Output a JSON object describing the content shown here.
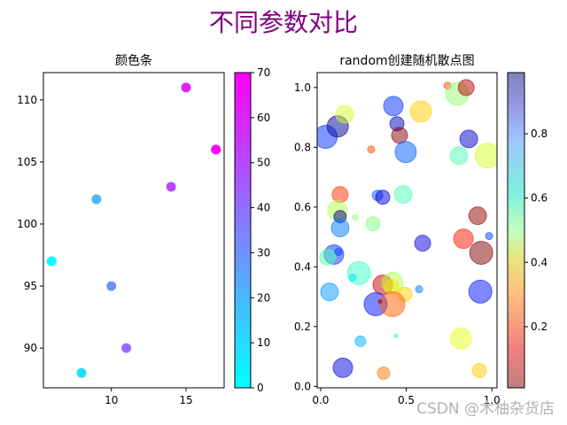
{
  "figure": {
    "suptitle": "不同参数对比",
    "suptitle_color": "#800080",
    "watermark": "CSDN @木柚杂货店"
  },
  "chart_data": [
    {
      "type": "scatter",
      "title": "颜色条",
      "xlabel": "",
      "ylabel": "",
      "xlim": [
        5.45,
        17.55
      ],
      "ylim": [
        86.8,
        112.2
      ],
      "xticks": [
        10,
        15
      ],
      "yticks": [
        90,
        95,
        100,
        105,
        110
      ],
      "grid": false,
      "colormap": "cool",
      "colorbar": {
        "range": [
          0,
          70
        ],
        "ticks": [
          0,
          10,
          20,
          30,
          40,
          50,
          60,
          70
        ]
      },
      "points": [
        {
          "x": 6,
          "y": 97,
          "c": 0
        },
        {
          "x": 8,
          "y": 88,
          "c": 10
        },
        {
          "x": 9,
          "y": 102,
          "c": 20
        },
        {
          "x": 10,
          "y": 95,
          "c": 30
        },
        {
          "x": 11,
          "y": 90,
          "c": 40
        },
        {
          "x": 14,
          "y": 103,
          "c": 50
        },
        {
          "x": 15,
          "y": 111,
          "c": 60
        },
        {
          "x": 17,
          "y": 106,
          "c": 70
        }
      ]
    },
    {
      "type": "scatter",
      "title": "random创建随机散点图",
      "xlabel": "",
      "ylabel": "",
      "xlim": [
        -0.02,
        1.03
      ],
      "ylim": [
        -0.005,
        1.05
      ],
      "xticks": [
        0.0,
        0.5,
        1.0
      ],
      "yticks": [
        0.0,
        0.2,
        0.4,
        0.6,
        0.8,
        1.0
      ],
      "grid": false,
      "colormap": "jet_r",
      "alpha": 0.5,
      "colorbar": {
        "range": [
          0.01,
          0.99
        ],
        "ticks": [
          0.2,
          0.4,
          0.6,
          0.8
        ]
      },
      "points": [
        {
          "x": 0.03,
          "y": 0.835,
          "r": 13,
          "c": 0.82
        },
        {
          "x": 0.1,
          "y": 0.87,
          "r": 12,
          "c": 0.97
        },
        {
          "x": 0.14,
          "y": 0.911,
          "r": 10,
          "c": 0.42
        },
        {
          "x": 0.425,
          "y": 0.938,
          "r": 11,
          "c": 0.82
        },
        {
          "x": 0.446,
          "y": 0.879,
          "r": 8,
          "c": 0.93
        },
        {
          "x": 0.461,
          "y": 0.84,
          "r": 9,
          "c": 0.02
        },
        {
          "x": 0.497,
          "y": 0.784,
          "r": 12,
          "c": 0.78
        },
        {
          "x": 0.295,
          "y": 0.793,
          "r": 4,
          "c": 0.2
        },
        {
          "x": 0.741,
          "y": 1.006,
          "r": 4,
          "c": 0.2
        },
        {
          "x": 0.798,
          "y": 0.979,
          "r": 13,
          "c": 0.48
        },
        {
          "x": 0.85,
          "y": 1.0,
          "r": 9,
          "c": 0.06
        },
        {
          "x": 0.585,
          "y": 0.92,
          "r": 12,
          "c": 0.33
        },
        {
          "x": 0.865,
          "y": 0.828,
          "r": 10,
          "c": 0.92
        },
        {
          "x": 0.808,
          "y": 0.772,
          "r": 10,
          "c": 0.55
        },
        {
          "x": 0.974,
          "y": 0.772,
          "r": 14,
          "c": 0.42
        },
        {
          "x": 0.114,
          "y": 0.642,
          "r": 9,
          "c": 0.18
        },
        {
          "x": 0.098,
          "y": 0.589,
          "r": 11,
          "c": 0.45
        },
        {
          "x": 0.114,
          "y": 0.568,
          "r": 7,
          "c": 1.0
        },
        {
          "x": 0.202,
          "y": 0.565,
          "r": 3,
          "c": 0.48
        },
        {
          "x": 0.114,
          "y": 0.53,
          "r": 10,
          "c": 0.75
        },
        {
          "x": 0.332,
          "y": 0.639,
          "r": 6,
          "c": 0.78
        },
        {
          "x": 0.363,
          "y": 0.633,
          "r": 8,
          "c": 0.9
        },
        {
          "x": 0.482,
          "y": 0.642,
          "r": 10,
          "c": 0.55
        },
        {
          "x": 0.306,
          "y": 0.544,
          "r": 8,
          "c": 0.5
        },
        {
          "x": 0.078,
          "y": 0.441,
          "r": 11,
          "c": 0.82
        },
        {
          "x": 0.041,
          "y": 0.432,
          "r": 9,
          "c": 0.55
        },
        {
          "x": 0.104,
          "y": 0.45,
          "r": 4,
          "c": 0.8
        },
        {
          "x": 0.917,
          "y": 0.571,
          "r": 10,
          "c": 0.03
        },
        {
          "x": 0.834,
          "y": 0.494,
          "r": 11,
          "c": 0.15
        },
        {
          "x": 0.984,
          "y": 0.503,
          "r": 4,
          "c": 0.8
        },
        {
          "x": 0.938,
          "y": 0.447,
          "r": 13,
          "c": 0.01
        },
        {
          "x": 0.596,
          "y": 0.479,
          "r": 9,
          "c": 0.9
        },
        {
          "x": 0.223,
          "y": 0.379,
          "r": 13,
          "c": 0.57
        },
        {
          "x": 0.187,
          "y": 0.364,
          "r": 4,
          "c": 0.65
        },
        {
          "x": 0.052,
          "y": 0.316,
          "r": 10,
          "c": 0.72
        },
        {
          "x": 0.363,
          "y": 0.34,
          "r": 11,
          "c": 0.08
        },
        {
          "x": 0.42,
          "y": 0.346,
          "r": 12,
          "c": 0.45
        },
        {
          "x": 0.415,
          "y": 0.334,
          "r": 8,
          "c": 0.35
        },
        {
          "x": 0.492,
          "y": 0.308,
          "r": 8,
          "c": 0.33
        },
        {
          "x": 0.575,
          "y": 0.325,
          "r": 4,
          "c": 0.75
        },
        {
          "x": 0.321,
          "y": 0.275,
          "r": 13,
          "c": 0.85
        },
        {
          "x": 0.42,
          "y": 0.275,
          "r": 14,
          "c": 0.22
        },
        {
          "x": 0.347,
          "y": 0.284,
          "r": 2,
          "c": 0.05
        },
        {
          "x": 0.233,
          "y": 0.151,
          "r": 6,
          "c": 0.7
        },
        {
          "x": 0.44,
          "y": 0.169,
          "r": 2,
          "c": 0.6
        },
        {
          "x": 0.13,
          "y": 0.062,
          "r": 11,
          "c": 0.9
        },
        {
          "x": 0.368,
          "y": 0.044,
          "r": 7,
          "c": 0.25
        },
        {
          "x": 0.933,
          "y": 0.317,
          "r": 13,
          "c": 0.85
        },
        {
          "x": 0.819,
          "y": 0.16,
          "r": 12,
          "c": 0.4
        },
        {
          "x": 0.927,
          "y": 0.053,
          "r": 8,
          "c": 0.33
        }
      ]
    }
  ]
}
